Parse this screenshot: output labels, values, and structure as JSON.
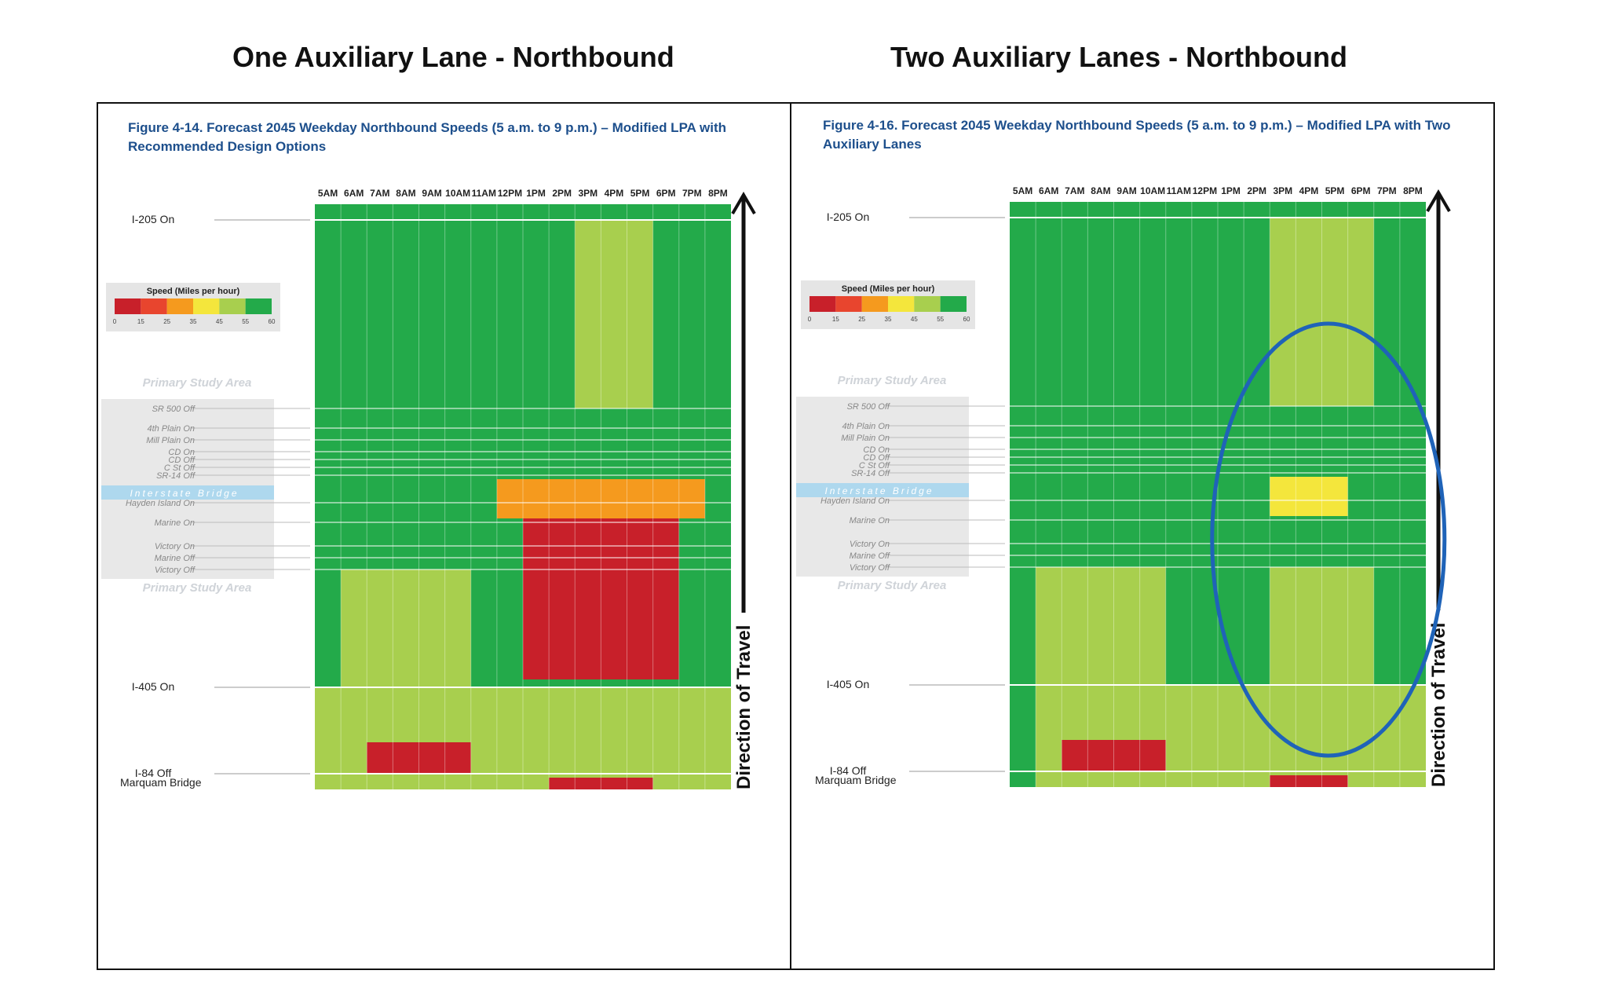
{
  "headings": {
    "left": "One Auxiliary Lane - Northbound",
    "right": "Two Auxiliary Lanes - Northbound"
  },
  "shared": {
    "time_labels": [
      "5AM",
      "6AM",
      "7AM",
      "8AM",
      "9AM",
      "10AM",
      "11AM",
      "12PM",
      "1PM",
      "2PM",
      "3PM",
      "4PM",
      "5PM",
      "6PM",
      "7PM",
      "8PM"
    ],
    "legend_title": "Speed (Miles per hour)",
    "legend_ticks": [
      "0",
      "15",
      "25",
      "35",
      "45",
      "55",
      "60"
    ],
    "legend_colors": [
      "#c8202a",
      "#e8452e",
      "#f59a1e",
      "#f4e63c",
      "#a8cf4e",
      "#23aa4a"
    ],
    "direction_label": "Direction of Travel",
    "primary_study_area": "Primary Study Area",
    "interstate_bridge": "Interstate Bridge",
    "locations": {
      "i205_on": "I-205 On",
      "sr500_off": "SR 500 Off",
      "fourth_plain_on": "4th Plain On",
      "mill_plain_on": "Mill Plain On",
      "cd_on": "CD On",
      "cd_off": "CD Off",
      "c_st_off": "C St Off",
      "sr14_off": "SR-14 Off",
      "hayden_island_on": "Hayden Island On",
      "marine_on": "Marine On",
      "victory_on": "Victory On",
      "marine_off": "Marine Off",
      "victory_off": "Victory Off",
      "i405_on": "I-405 On",
      "i84_off": "I-84 Off",
      "marquam_bridge": "Marquam Bridge"
    }
  },
  "chart_data": [
    {
      "type": "heatmap",
      "title": "Figure 4-14. Forecast 2045 Weekday Northbound Speeds (5 a.m. to 9 p.m.) – Modified LPA with Recommended Design Options",
      "title_lines": [
        "Figure 4-14. Forecast 2045 Weekday Northbound Speeds (5 a.m. to 9 p.m.) – Modified LPA with",
        "Recommended Design Options"
      ],
      "x_categories": [
        "5AM",
        "6AM",
        "7AM",
        "8AM",
        "9AM",
        "10AM",
        "11AM",
        "12PM",
        "1PM",
        "2PM",
        "3PM",
        "4PM",
        "5PM",
        "6PM",
        "7PM",
        "8PM"
      ],
      "y_axis": "location along corridor (downstream at top)",
      "speed_bins_mph": [
        0,
        15,
        25,
        35,
        45,
        55,
        60
      ],
      "default_speed": 58,
      "zones": [
        {
          "region": "I-405 On to Marquam Bridge",
          "from": "5AM",
          "to": "8PM",
          "speed": 50
        },
        {
          "region": "Marine On to I-405 On",
          "from": "6AM",
          "to": "10AM",
          "speed": 50
        },
        {
          "region": "Interstate Bridge to I-405 On",
          "from": "1PM",
          "to": "6PM",
          "speed": 10
        },
        {
          "region": "Interstate Bridge",
          "from": "12PM",
          "to": "7PM",
          "speed": 30
        },
        {
          "region": "I-205 On to SR 500 Off",
          "from": "3PM",
          "to": "5PM",
          "speed": 50
        },
        {
          "region": "I-84 Off",
          "from": "7AM",
          "to": "10AM",
          "speed": 10
        },
        {
          "region": "Marquam Bridge",
          "from": "2PM",
          "to": "5PM",
          "speed": 10
        }
      ]
    },
    {
      "type": "heatmap",
      "title": "Figure 4-16. Forecast 2045 Weekday Northbound Speeds (5 a.m. to 9 p.m.) – Modified LPA with Two Auxiliary Lanes",
      "title_lines": [
        "Figure 4-16. Forecast 2045 Weekday Northbound Speeds (5 a.m. to 9 p.m.) – Modified LPA with Two",
        "Auxiliary Lanes"
      ],
      "x_categories": [
        "5AM",
        "6AM",
        "7AM",
        "8AM",
        "9AM",
        "10AM",
        "11AM",
        "12PM",
        "1PM",
        "2PM",
        "3PM",
        "4PM",
        "5PM",
        "6PM",
        "7PM",
        "8PM"
      ],
      "y_axis": "location along corridor (downstream at top)",
      "speed_bins_mph": [
        0,
        15,
        25,
        35,
        45,
        55,
        60
      ],
      "default_speed": 58,
      "zones": [
        {
          "region": "Victory Off to Marquam Bridge",
          "from": "6AM",
          "to": "10AM",
          "speed": 50
        },
        {
          "region": "Victory Off to Marquam Bridge",
          "from": "3PM",
          "to": "6PM",
          "speed": 50
        },
        {
          "region": "I-405 On to Marquam Bridge",
          "from": "10AM",
          "to": "8PM",
          "speed": 50
        },
        {
          "region": "I-205 On to SR 500 Off",
          "from": "3PM",
          "to": "6PM",
          "speed": 50
        },
        {
          "region": "Interstate Bridge",
          "from": "3PM",
          "to": "5PM",
          "speed": 38
        },
        {
          "region": "I-84 Off",
          "from": "7AM",
          "to": "10AM",
          "speed": 10
        },
        {
          "region": "Marquam Bridge",
          "from": "3PM",
          "to": "5PM",
          "speed": 10
        }
      ],
      "annotation": "ellipse highlighting 3PM-6PM between SR 500 Off and I-405 On"
    }
  ]
}
